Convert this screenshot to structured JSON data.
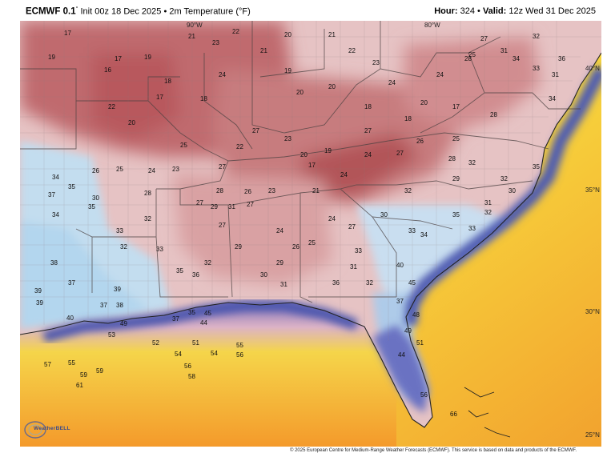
{
  "header": {
    "model": "ECMWF 0.1",
    "degree_mark": "°",
    "init": "Init 00z 18 Dec 2025",
    "separator": "•",
    "product": "2m Temperature (°F)",
    "hour_label": "Hour:",
    "hour_value": "324",
    "valid_label": "Valid:",
    "valid_value": "12z Wed 31 Dec 2025"
  },
  "map": {
    "lon_labels": [
      "90°W",
      "80°W"
    ],
    "lat_labels": [
      "40°N",
      "35°N",
      "30°N",
      "25°N"
    ],
    "temperature_labels": [
      {
        "v": "17",
        "col": "#000"
      },
      {
        "v": "16",
        "col": "#000"
      },
      {
        "v": "19",
        "col": "#000"
      },
      {
        "v": "21",
        "col": "#000"
      },
      {
        "v": "22",
        "col": "#000"
      },
      {
        "v": "23",
        "col": "#000"
      },
      {
        "v": "24",
        "col": "#000"
      },
      {
        "v": "20",
        "col": "#000"
      },
      {
        "v": "18",
        "col": "#000"
      },
      {
        "v": "25",
        "col": "#000"
      },
      {
        "v": "26",
        "col": "#000"
      },
      {
        "v": "27",
        "col": "#000"
      },
      {
        "v": "28",
        "col": "#000"
      },
      {
        "v": "29",
        "col": "#000"
      },
      {
        "v": "30",
        "col": "#000"
      },
      {
        "v": "31",
        "col": "#000"
      },
      {
        "v": "32",
        "col": "#000"
      },
      {
        "v": "33",
        "col": "#000"
      },
      {
        "v": "34",
        "col": "#000"
      },
      {
        "v": "35",
        "col": "#000"
      },
      {
        "v": "36",
        "col": "#000"
      },
      {
        "v": "37",
        "col": "#000"
      },
      {
        "v": "38",
        "col": "#000"
      },
      {
        "v": "39",
        "col": "#000"
      },
      {
        "v": "40",
        "col": "#000"
      },
      {
        "v": "44",
        "col": "#000"
      },
      {
        "v": "45",
        "col": "#000"
      },
      {
        "v": "48",
        "col": "#000"
      },
      {
        "v": "49",
        "col": "#000"
      },
      {
        "v": "51",
        "col": "#000"
      },
      {
        "v": "52",
        "col": "#000"
      },
      {
        "v": "53",
        "col": "#000"
      },
      {
        "v": "54",
        "col": "#000"
      },
      {
        "v": "55",
        "col": "#000"
      },
      {
        "v": "56",
        "col": "#000"
      },
      {
        "v": "57",
        "col": "#000"
      },
      {
        "v": "58",
        "col": "#000"
      },
      {
        "v": "59",
        "col": "#000"
      },
      {
        "v": "61",
        "col": "#000"
      },
      {
        "v": "66",
        "col": "#000"
      }
    ],
    "colors": {
      "cold_red": "#b55a5e",
      "mid_pink": "#e7c2c2",
      "cool_blue": "#bcdcef",
      "coastal_purple": "#4d5bb0",
      "warm_yellow": "#f6d43a",
      "hot_orange": "#f29a2a",
      "border": "#3a3a3a"
    }
  },
  "footer": {
    "credit": "© 2025 European Centre for Medium-Range Weather Forecasts (ECMWF). This service is based on data and products of the ECMWF."
  },
  "logo": {
    "text": "WeatherBELL"
  }
}
